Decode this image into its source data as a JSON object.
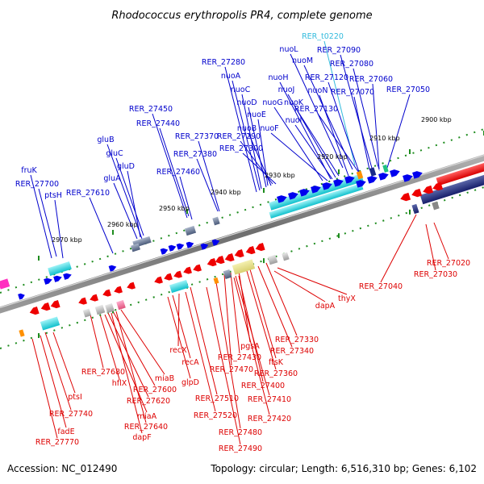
{
  "title": "Rhodococcus erythropolis PR4, complete genome",
  "footer": {
    "accession": "Accession: NC_012490",
    "topology": "Topology: circular; Length: 6,516,310 bp; Genes: 6,102"
  },
  "colors": {
    "forward_label": "#0000cc",
    "reverse_label": "#dd0000",
    "rna_label": "#33bbdd",
    "backbone": "#808080"
  },
  "kbp_labels": [
    "2900 kbp",
    "2910 kbp",
    "2920 kbp",
    "2930 kbp",
    "2940 kbp",
    "2950 kbp",
    "2960 kbp",
    "2970 kbp"
  ],
  "top_labels": [
    {
      "text": "RER_t0220",
      "kind": "rna"
    },
    {
      "text": "nuoL",
      "kind": "fwd"
    },
    {
      "text": "RER_27090",
      "kind": "fwd"
    },
    {
      "text": "nuoM",
      "kind": "fwd"
    },
    {
      "text": "RER_27080",
      "kind": "fwd"
    },
    {
      "text": "RER_27280",
      "kind": "fwd"
    },
    {
      "text": "nuoA",
      "kind": "fwd"
    },
    {
      "text": "nuoH",
      "kind": "fwd"
    },
    {
      "text": "RER_27120",
      "kind": "fwd"
    },
    {
      "text": "RER_27060",
      "kind": "fwd"
    },
    {
      "text": "nuoC",
      "kind": "fwd"
    },
    {
      "text": "nuoJ",
      "kind": "fwd"
    },
    {
      "text": "nuoN",
      "kind": "fwd"
    },
    {
      "text": "RER_27070",
      "kind": "fwd"
    },
    {
      "text": "RER_27050",
      "kind": "fwd"
    },
    {
      "text": "nuoD",
      "kind": "fwd"
    },
    {
      "text": "nuoG",
      "kind": "fwd"
    },
    {
      "text": "nuoK",
      "kind": "fwd"
    },
    {
      "text": "RER_27450",
      "kind": "fwd"
    },
    {
      "text": "nuoE",
      "kind": "fwd"
    },
    {
      "text": "RER_27130",
      "kind": "fwd"
    },
    {
      "text": "RER_27440",
      "kind": "fwd"
    },
    {
      "text": "nuoI",
      "kind": "fwd"
    },
    {
      "text": "nuoB",
      "kind": "fwd"
    },
    {
      "text": "nuoF",
      "kind": "fwd"
    },
    {
      "text": "gluB",
      "kind": "fwd"
    },
    {
      "text": "RER_27370",
      "kind": "fwd"
    },
    {
      "text": "RER_27290",
      "kind": "fwd"
    },
    {
      "text": "RER_27300",
      "kind": "fwd"
    },
    {
      "text": "gluC",
      "kind": "fwd"
    },
    {
      "text": "RER_27380",
      "kind": "fwd"
    },
    {
      "text": "gluD",
      "kind": "fwd"
    },
    {
      "text": "fruK",
      "kind": "fwd"
    },
    {
      "text": "RER_27460",
      "kind": "fwd"
    },
    {
      "text": "gluA",
      "kind": "fwd"
    },
    {
      "text": "RER_27700",
      "kind": "fwd"
    },
    {
      "text": "ptsH",
      "kind": "fwd"
    },
    {
      "text": "RER_27610",
      "kind": "fwd"
    }
  ],
  "bottom_labels": [
    {
      "text": "RER_27020"
    },
    {
      "text": "RER_27030"
    },
    {
      "text": "RER_27040"
    },
    {
      "text": "thyX"
    },
    {
      "text": "dapA"
    },
    {
      "text": "RER_27330"
    },
    {
      "text": "pgsA"
    },
    {
      "text": "RER_27340"
    },
    {
      "text": "recX"
    },
    {
      "text": "RER_27430"
    },
    {
      "text": "ftsK"
    },
    {
      "text": "recA"
    },
    {
      "text": "RER_27470"
    },
    {
      "text": "RER_27360"
    },
    {
      "text": "RER_27680"
    },
    {
      "text": "miaB"
    },
    {
      "text": "glpD"
    },
    {
      "text": "RER_27400"
    },
    {
      "text": "hflX"
    },
    {
      "text": "RER_27600"
    },
    {
      "text": "RER_27510"
    },
    {
      "text": "RER_27410"
    },
    {
      "text": "ptsI"
    },
    {
      "text": "RER_27620"
    },
    {
      "text": "RER_27520"
    },
    {
      "text": "RER_27420"
    },
    {
      "text": "RER_27740"
    },
    {
      "text": "miaA"
    },
    {
      "text": "RER_27640"
    },
    {
      "text": "RER_27480"
    },
    {
      "text": "fadE"
    },
    {
      "text": "dapF"
    },
    {
      "text": "RER_27770"
    },
    {
      "text": "RER_27490"
    }
  ]
}
